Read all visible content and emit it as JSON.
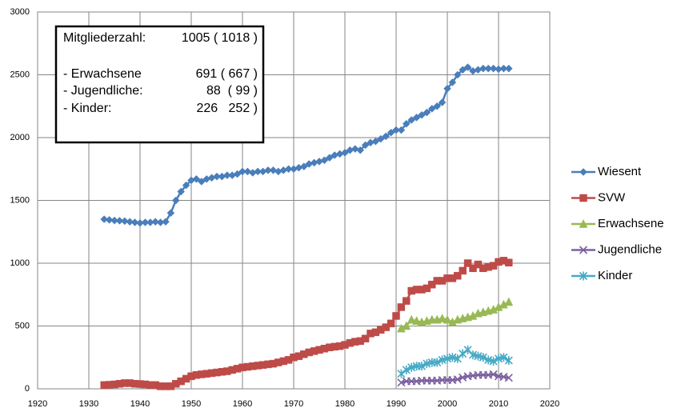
{
  "chart_data": {
    "type": "line",
    "x": [
      1933,
      1934,
      1935,
      1936,
      1937,
      1938,
      1939,
      1940,
      1941,
      1942,
      1943,
      1944,
      1945,
      1946,
      1947,
      1948,
      1949,
      1950,
      1951,
      1952,
      1953,
      1954,
      1955,
      1956,
      1957,
      1958,
      1959,
      1960,
      1961,
      1962,
      1963,
      1964,
      1965,
      1966,
      1967,
      1968,
      1969,
      1970,
      1971,
      1972,
      1973,
      1974,
      1975,
      1976,
      1977,
      1978,
      1979,
      1980,
      1981,
      1982,
      1983,
      1984,
      1985,
      1986,
      1987,
      1988,
      1989,
      1990,
      1991,
      1992,
      1993,
      1994,
      1995,
      1996,
      1997,
      1998,
      1999,
      2000,
      2001,
      2002,
      2003,
      2004,
      2005,
      2006,
      2007,
      2008,
      2009,
      2010,
      2011,
      2012
    ],
    "series": [
      {
        "name": "Wiesent",
        "color": "#4a7ebb",
        "marker": "diamond",
        "values": [
          1350,
          1345,
          1340,
          1338,
          1335,
          1330,
          1325,
          1320,
          1325,
          1325,
          1330,
          1325,
          1330,
          1400,
          1500,
          1570,
          1620,
          1660,
          1670,
          1650,
          1670,
          1680,
          1690,
          1690,
          1700,
          1700,
          1710,
          1730,
          1730,
          1720,
          1730,
          1730,
          1740,
          1740,
          1730,
          1740,
          1750,
          1750,
          1760,
          1770,
          1790,
          1800,
          1810,
          1820,
          1840,
          1860,
          1870,
          1880,
          1900,
          1910,
          1900,
          1940,
          1960,
          1970,
          1990,
          2010,
          2040,
          2060,
          2060,
          2110,
          2140,
          2160,
          2180,
          2200,
          2230,
          2250,
          2280,
          2390,
          2440,
          2500,
          2540,
          2560,
          2530,
          2540,
          2550,
          2550,
          2550,
          2545,
          2550,
          2550
        ]
      },
      {
        "name": "SVW",
        "color": "#be4b48",
        "marker": "square",
        "values": [
          30,
          32,
          35,
          40,
          45,
          45,
          40,
          38,
          35,
          30,
          30,
          20,
          20,
          20,
          40,
          60,
          80,
          100,
          110,
          115,
          120,
          125,
          130,
          135,
          140,
          150,
          160,
          170,
          175,
          180,
          185,
          190,
          195,
          200,
          210,
          220,
          230,
          250,
          260,
          275,
          290,
          300,
          310,
          320,
          330,
          335,
          340,
          350,
          365,
          375,
          380,
          400,
          440,
          450,
          470,
          490,
          520,
          580,
          650,
          700,
          780,
          790,
          790,
          800,
          830,
          860,
          860,
          880,
          880,
          900,
          940,
          1000,
          960,
          990,
          960,
          970,
          980,
          1010,
          1020,
          1005
        ]
      },
      {
        "name": "Erwachsene",
        "color": "#98b954",
        "marker": "triangle",
        "values": [
          null,
          null,
          null,
          null,
          null,
          null,
          null,
          null,
          null,
          null,
          null,
          null,
          null,
          null,
          null,
          null,
          null,
          null,
          null,
          null,
          null,
          null,
          null,
          null,
          null,
          null,
          null,
          null,
          null,
          null,
          null,
          null,
          null,
          null,
          null,
          null,
          null,
          null,
          null,
          null,
          null,
          null,
          null,
          null,
          null,
          null,
          null,
          null,
          null,
          null,
          null,
          null,
          null,
          null,
          null,
          null,
          null,
          null,
          480,
          500,
          550,
          540,
          530,
          540,
          550,
          550,
          560,
          550,
          530,
          550,
          560,
          570,
          580,
          600,
          610,
          620,
          630,
          650,
          670,
          691
        ]
      },
      {
        "name": "Jugendliche",
        "color": "#7d60a0",
        "marker": "x",
        "values": [
          null,
          null,
          null,
          null,
          null,
          null,
          null,
          null,
          null,
          null,
          null,
          null,
          null,
          null,
          null,
          null,
          null,
          null,
          null,
          null,
          null,
          null,
          null,
          null,
          null,
          null,
          null,
          null,
          null,
          null,
          null,
          null,
          null,
          null,
          null,
          null,
          null,
          null,
          null,
          null,
          null,
          null,
          null,
          null,
          null,
          null,
          null,
          null,
          null,
          null,
          null,
          null,
          null,
          null,
          null,
          null,
          null,
          null,
          50,
          60,
          60,
          60,
          65,
          65,
          65,
          65,
          70,
          70,
          70,
          75,
          90,
          100,
          105,
          110,
          110,
          110,
          115,
          100,
          95,
          88
        ]
      },
      {
        "name": "Kinder",
        "color": "#46aac5",
        "marker": "star",
        "values": [
          null,
          null,
          null,
          null,
          null,
          null,
          null,
          null,
          null,
          null,
          null,
          null,
          null,
          null,
          null,
          null,
          null,
          null,
          null,
          null,
          null,
          null,
          null,
          null,
          null,
          null,
          null,
          null,
          null,
          null,
          null,
          null,
          null,
          null,
          null,
          null,
          null,
          null,
          null,
          null,
          null,
          null,
          null,
          null,
          null,
          null,
          null,
          null,
          null,
          null,
          null,
          null,
          null,
          null,
          null,
          null,
          null,
          null,
          120,
          150,
          170,
          180,
          180,
          200,
          210,
          210,
          230,
          240,
          250,
          240,
          280,
          310,
          270,
          260,
          250,
          230,
          220,
          240,
          250,
          226
        ]
      }
    ],
    "xlim": [
      1920,
      2020
    ],
    "xticks": [
      1920,
      1930,
      1940,
      1950,
      1960,
      1970,
      1980,
      1990,
      2000,
      2010,
      2020
    ],
    "ylim": [
      0,
      3000
    ],
    "yticks": [
      0,
      500,
      1000,
      1500,
      2000,
      2500,
      3000
    ],
    "grid": true,
    "legend": "right",
    "annotation": [
      [
        "Mitgliederzahl:",
        "1005 ( 1018 )"
      ],
      [
        "- Erwachsene",
        "691 ( 667 )"
      ],
      [
        "- Jugendliche:",
        "88  ( 99 )"
      ],
      [
        "- Kinder:",
        "226   252 )"
      ]
    ]
  }
}
